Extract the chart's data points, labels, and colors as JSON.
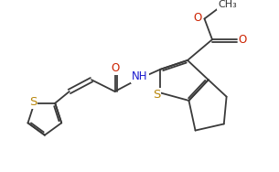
{
  "bg_color": "#ffffff",
  "line_color": "#3a3a3a",
  "s_color": "#b8860b",
  "n_color": "#1a1acd",
  "o_color": "#cc2200",
  "line_width": 1.3,
  "font_size": 8.5,
  "figsize": [
    3.05,
    1.88
  ],
  "dpi": 100,
  "xlim": [
    0,
    10.5
  ],
  "ylim": [
    0,
    6.5
  ]
}
